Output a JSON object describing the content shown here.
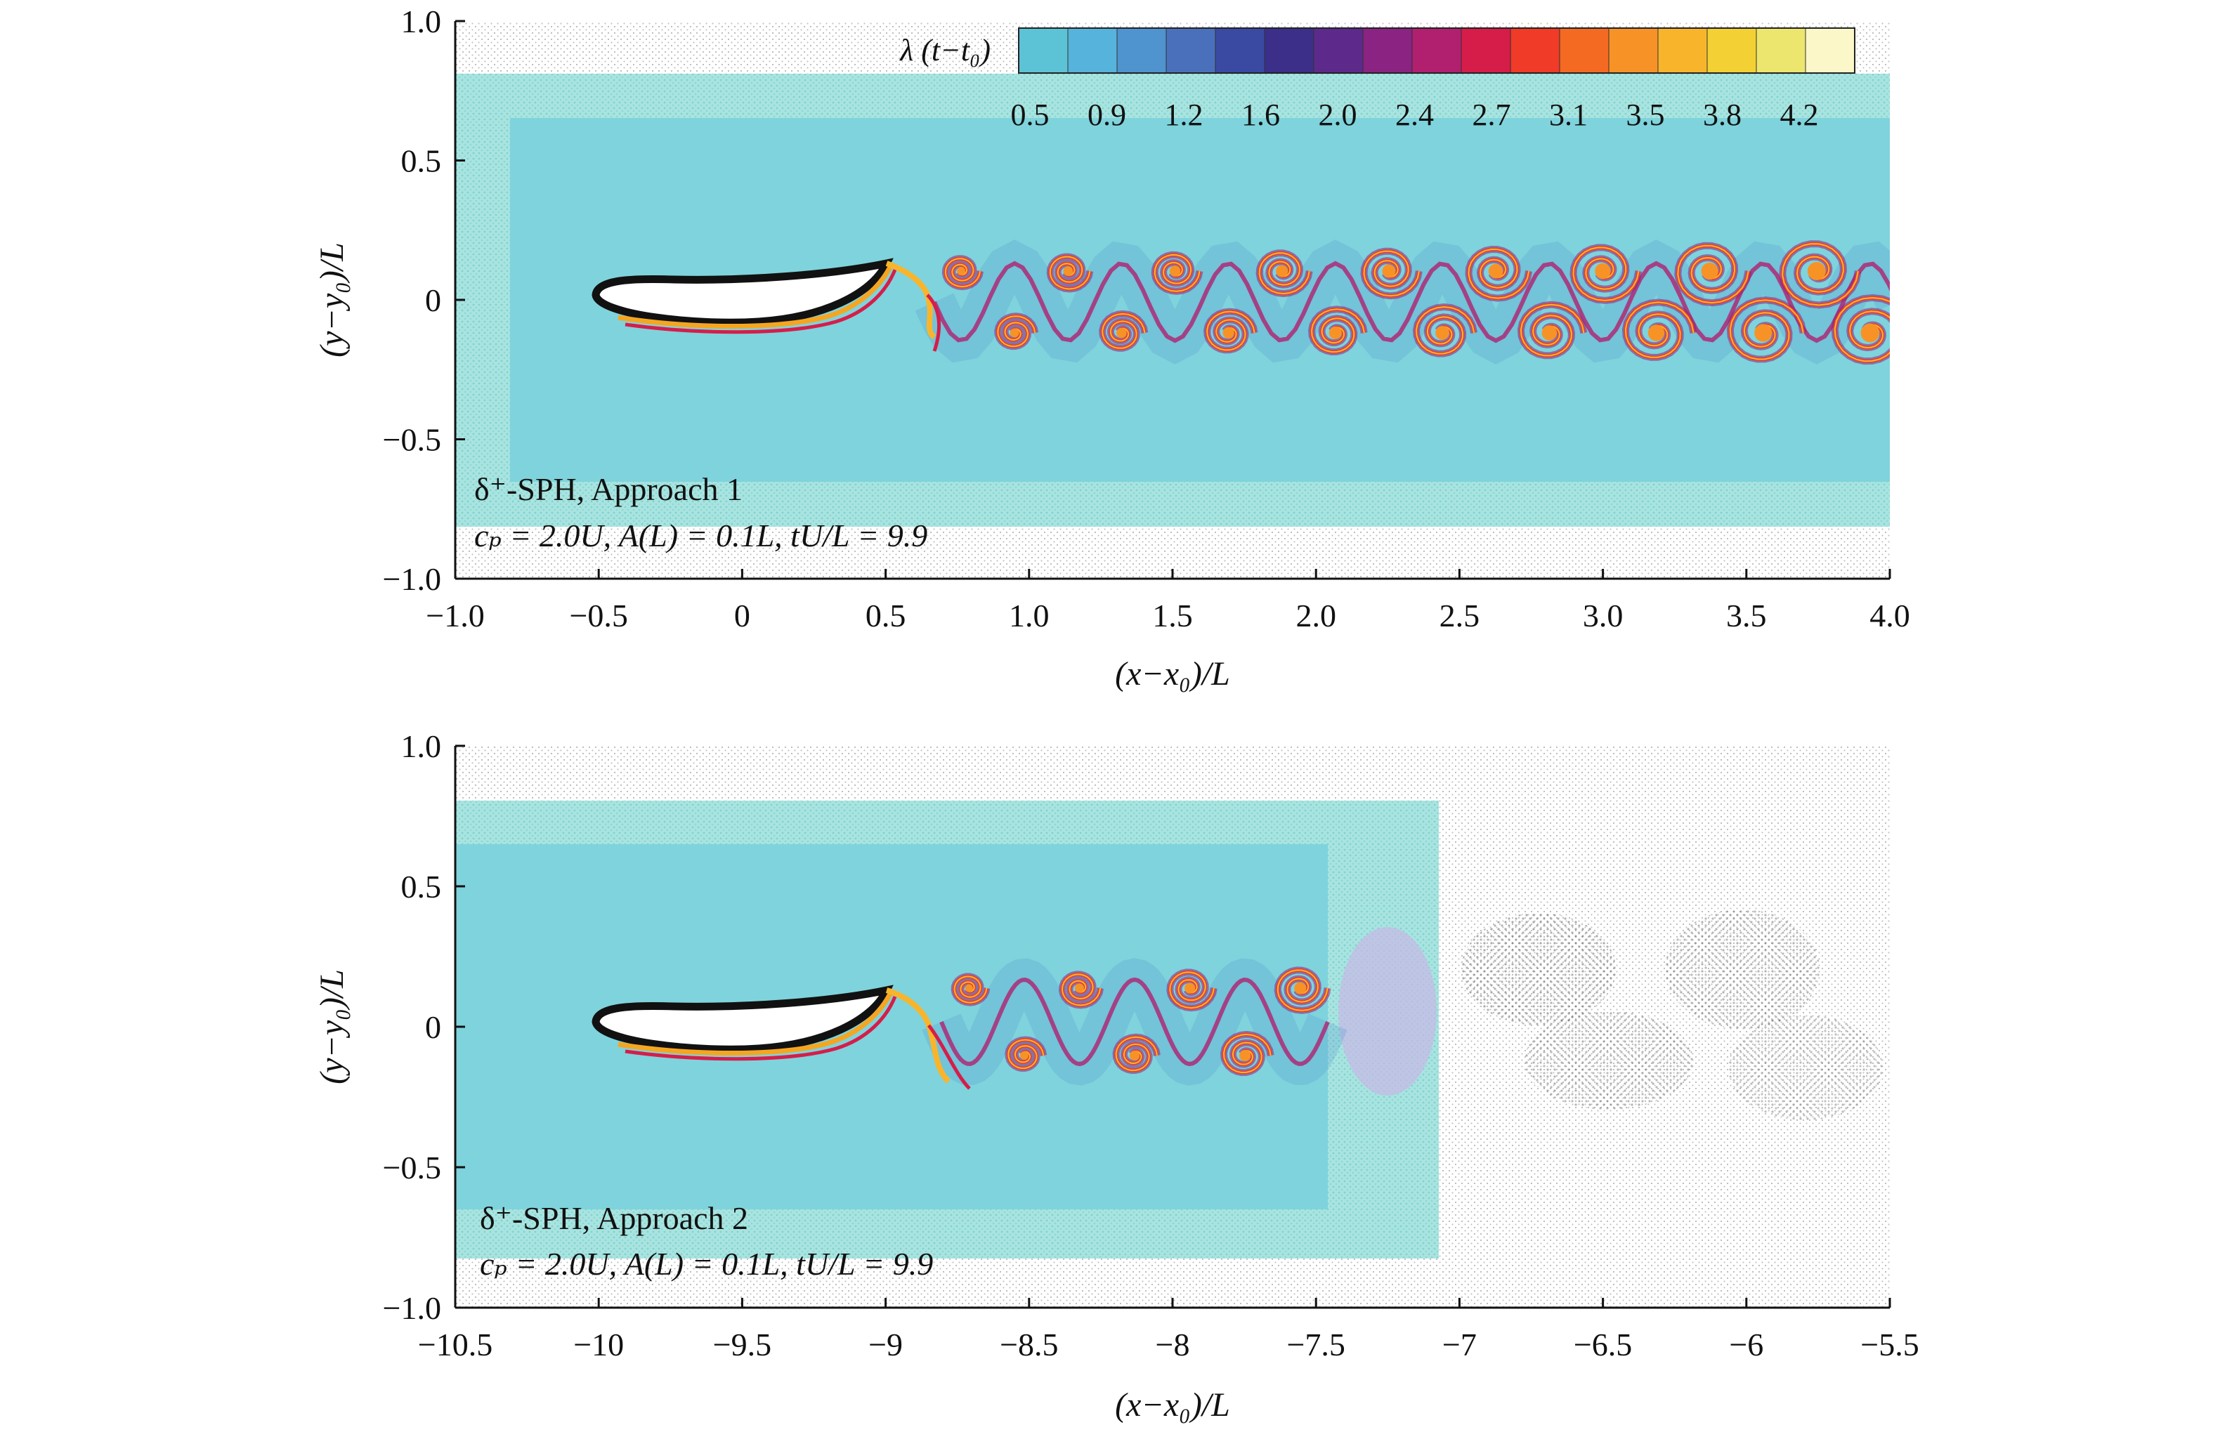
{
  "colorbar": {
    "label": "λ (t−t₀)",
    "tick_labels": [
      "0.5",
      "0.9",
      "1.2",
      "1.6",
      "2.0",
      "2.4",
      "2.7",
      "3.1",
      "3.5",
      "3.8",
      "4.2"
    ],
    "colors": [
      "#5cc3d6",
      "#55b3dc",
      "#4f93cf",
      "#4a70bb",
      "#3a4aa3",
      "#3b2f8a",
      "#5d2a8c",
      "#8a2382",
      "#b0206f",
      "#d61d4a",
      "#ef3b27",
      "#f56a23",
      "#f79326",
      "#f8b52c",
      "#f3d033",
      "#ede66e",
      "#fbf7c8"
    ]
  },
  "panels": [
    {
      "id": "top",
      "xlabel": "(x−x₀)/L",
      "ylabel": "(y−y₀)/L",
      "xlim": [
        -1.0,
        4.0
      ],
      "ylim": [
        -1.0,
        1.0
      ],
      "x_tick_values": [
        -1.0,
        -0.5,
        0,
        0.5,
        1.0,
        1.5,
        2.0,
        2.5,
        3.0,
        3.5,
        4.0
      ],
      "x_tick_labels": [
        "−1.0",
        "−0.5",
        "0",
        "0.5",
        "1.0",
        "1.5",
        "2.0",
        "2.5",
        "3.0",
        "3.5",
        "4.0"
      ],
      "y_tick_values": [
        -1.0,
        -0.5,
        0,
        0.5,
        1.0
      ],
      "y_tick_labels": [
        "−1.0",
        "−0.5",
        "0",
        "0.5",
        "1.0"
      ],
      "annotation_line1": "δ⁺-SPH, Approach 1",
      "annotation_line2": "cₚ = 2.0U, A(L) = 0.1L, tU/L  = 9.9",
      "wake_vortex_count": 18
    },
    {
      "id": "bottom",
      "xlabel": "(x−x₀)/L",
      "ylabel": "(y−y₀)/L",
      "xlim": [
        -10.5,
        -5.5
      ],
      "ylim": [
        -1.0,
        1.0
      ],
      "x_tick_values": [
        -10.5,
        -10,
        -9.5,
        -9,
        -8.5,
        -8,
        -7.5,
        -7,
        -6.5,
        -6,
        -5.5
      ],
      "x_tick_labels": [
        "−10.5",
        "−10",
        "−9.5",
        "−9",
        "−8.5",
        "−8",
        "−7.5",
        "−7",
        "−6.5",
        "−6",
        "−5.5"
      ],
      "y_tick_values": [
        -1.0,
        -0.5,
        0,
        0.5,
        1.0
      ],
      "y_tick_labels": [
        "−1.0",
        "−0.5",
        "0",
        "0.5",
        "1.0"
      ],
      "annotation_line1": "δ⁺-SPH, Approach 2",
      "annotation_line2": "cₚ = 2.0U, A(L) = 0.1L, tU/L  = 9.9",
      "wake_vortex_count": 7
    }
  ]
}
